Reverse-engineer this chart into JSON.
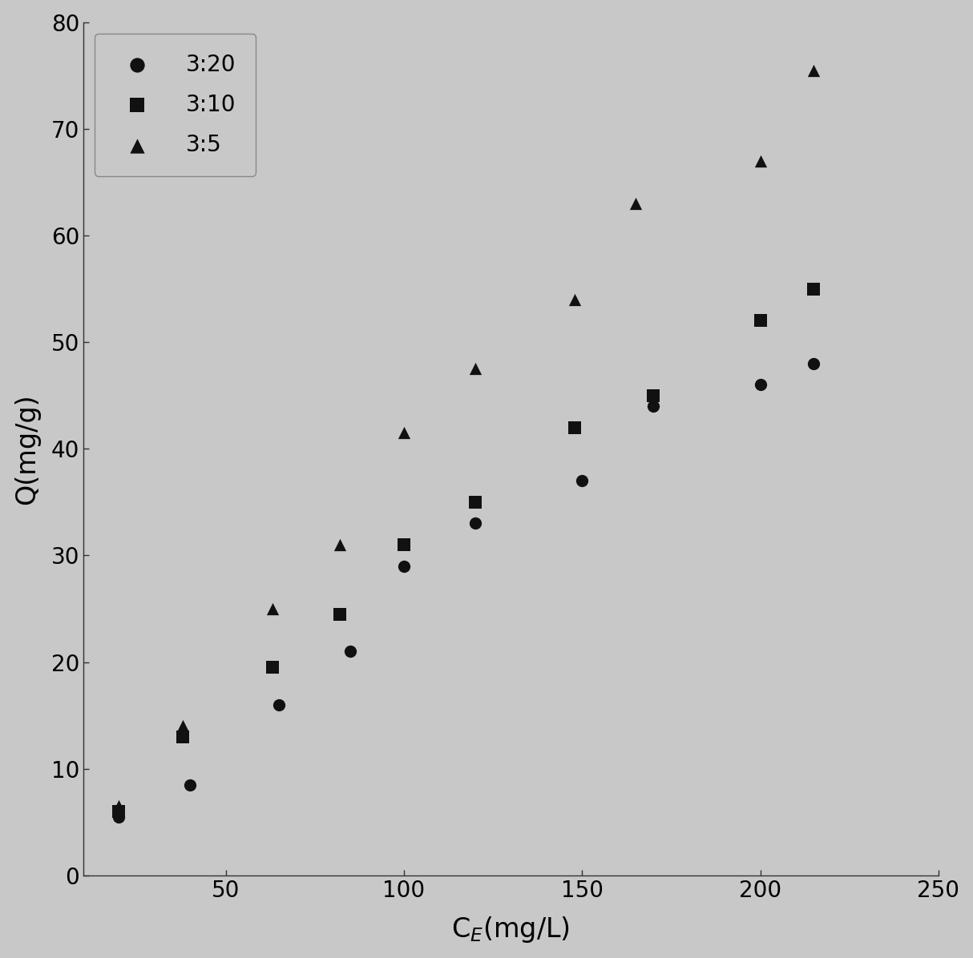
{
  "series": [
    {
      "label": "3:20",
      "marker": "o",
      "x": [
        20,
        40,
        65,
        85,
        100,
        120,
        150,
        170,
        200,
        215
      ],
      "y": [
        5.5,
        8.5,
        16,
        21,
        29,
        33,
        37,
        44,
        46,
        48
      ]
    },
    {
      "label": "3:10",
      "marker": "s",
      "x": [
        20,
        38,
        63,
        82,
        100,
        120,
        148,
        170,
        200,
        215
      ],
      "y": [
        6,
        13,
        19.5,
        24.5,
        31,
        35,
        42,
        45,
        52,
        55
      ]
    },
    {
      "label": "3:5",
      "marker": "^",
      "x": [
        20,
        38,
        63,
        82,
        100,
        120,
        148,
        165,
        200,
        215
      ],
      "y": [
        6.5,
        14,
        25,
        31,
        41.5,
        47.5,
        54,
        63,
        67,
        75.5
      ]
    }
  ],
  "xlabel": "C$_{E}$(mg/L)",
  "ylabel": "Q(mg/g)",
  "xlim": [
    10,
    250
  ],
  "ylim": [
    0,
    80
  ],
  "xticks": [
    50,
    100,
    150,
    200,
    250
  ],
  "yticks": [
    0,
    10,
    20,
    30,
    40,
    50,
    60,
    70,
    80
  ],
  "line_color": "#999999",
  "marker_color": "#111111",
  "bg_color": "#c8c8c8",
  "plot_bg_color": "#c8c8c8",
  "legend_loc": "upper left",
  "marker_size": 11,
  "line_width": 2.0,
  "font_size": 20,
  "label_font_size": 24
}
